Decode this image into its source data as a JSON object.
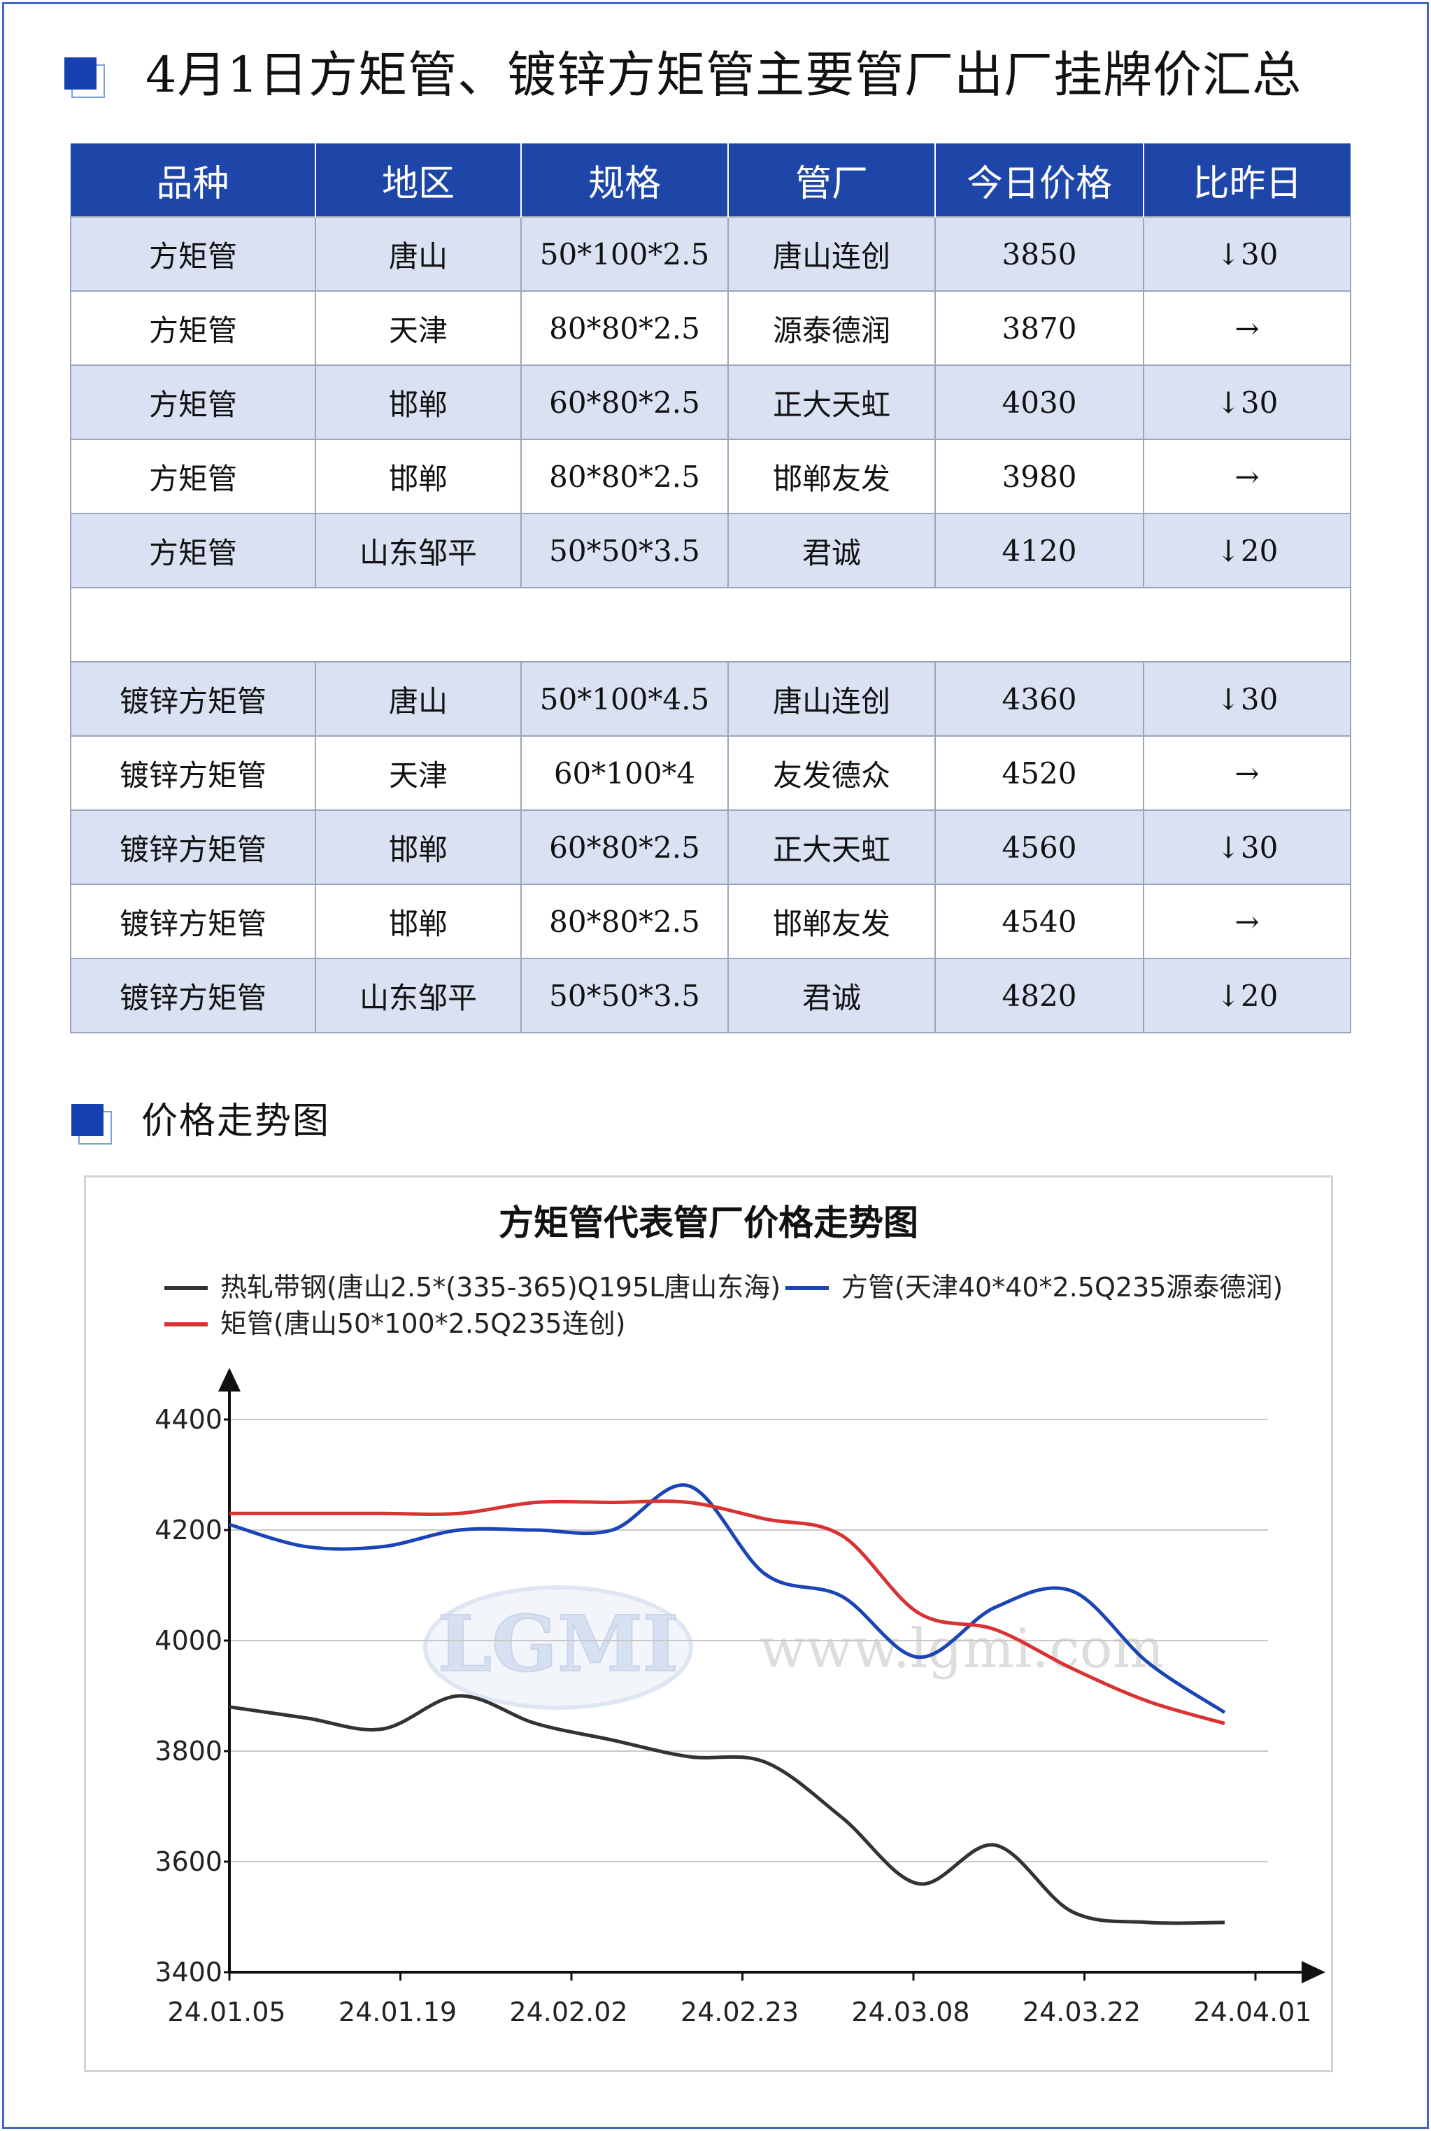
{
  "header": {
    "title": "4月1日方矩管、镀锌方矩管主要管厂出厂挂牌价汇总"
  },
  "table": {
    "columns": [
      "品种",
      "地区",
      "规格",
      "管厂",
      "今日价格",
      "比昨日"
    ],
    "rows_square": [
      {
        "product": "方矩管",
        "region": "唐山",
        "spec": "50*100*2.5",
        "mill": "唐山连创",
        "price": "3850",
        "change": "↓30",
        "trend": "down"
      },
      {
        "product": "方矩管",
        "region": "天津",
        "spec": "80*80*2.5",
        "mill": "源泰德润",
        "price": "3870",
        "change": "→",
        "trend": "flat"
      },
      {
        "product": "方矩管",
        "region": "邯郸",
        "spec": "60*80*2.5",
        "mill": "正大天虹",
        "price": "4030",
        "change": "↓30",
        "trend": "down"
      },
      {
        "product": "方矩管",
        "region": "邯郸",
        "spec": "80*80*2.5",
        "mill": "邯郸友发",
        "price": "3980",
        "change": "→",
        "trend": "flat"
      },
      {
        "product": "方矩管",
        "region": "山东邹平",
        "spec": "50*50*3.5",
        "mill": "君诚",
        "price": "4120",
        "change": "↓20",
        "trend": "down"
      }
    ],
    "rows_galv": [
      {
        "product": "镀锌方矩管",
        "region": "唐山",
        "spec": "50*100*4.5",
        "mill": "唐山连创",
        "price": "4360",
        "change": "↓30",
        "trend": "down"
      },
      {
        "product": "镀锌方矩管",
        "region": "天津",
        "spec": "60*100*4",
        "mill": "友发德众",
        "price": "4520",
        "change": "→",
        "trend": "flat"
      },
      {
        "product": "镀锌方矩管",
        "region": "邯郸",
        "spec": "60*80*2.5",
        "mill": "正大天虹",
        "price": "4560",
        "change": "↓30",
        "trend": "down"
      },
      {
        "product": "镀锌方矩管",
        "region": "邯郸",
        "spec": "80*80*2.5",
        "mill": "邯郸友发",
        "price": "4540",
        "change": "→",
        "trend": "flat"
      },
      {
        "product": "镀锌方矩管",
        "region": "山东邹平",
        "spec": "50*50*3.5",
        "mill": "君诚",
        "price": "4820",
        "change": "↓20",
        "trend": "down"
      }
    ]
  },
  "trend_section": {
    "title": "价格走势图"
  },
  "colors": {
    "header_blue": "#1d46a8",
    "row_alt": "#d9e1f2",
    "down_green": "#00a03c",
    "series_black": "#333333",
    "series_blue": "#1b45b5",
    "series_red": "#d93232"
  },
  "watermark": {
    "logo": "LGMI",
    "url": "www.lgmi.com"
  },
  "chart_data": {
    "type": "line",
    "title": "方矩管代表管厂价格走势图",
    "xlabel": "",
    "ylabel": "",
    "x_ticks": [
      "24.01.05",
      "24.01.19",
      "24.02.02",
      "24.02.23",
      "24.03.08",
      "24.03.22",
      "24.04.01"
    ],
    "ylim": [
      3400,
      4400
    ],
    "y_ticks": [
      3400,
      3600,
      3800,
      4000,
      4200,
      4400
    ],
    "grid": "horizontal",
    "legend": "top",
    "x": [
      "24.01.05",
      "24.01.12",
      "24.01.19",
      "24.01.26",
      "24.02.02",
      "24.02.09",
      "24.02.18",
      "24.02.23",
      "24.03.01",
      "24.03.08",
      "24.03.15",
      "24.03.22",
      "24.03.29",
      "24.04.01"
    ],
    "series": [
      {
        "name": "热轧带钢(唐山2.5*(335-365)Q195L唐山东海)",
        "color": "#333333",
        "values": [
          3880,
          3860,
          3840,
          3900,
          3850,
          3820,
          3790,
          3780,
          3680,
          3560,
          3630,
          3510,
          3490,
          3490
        ]
      },
      {
        "name": "方管(天津40*40*2.5Q235源泰德润)",
        "color": "#1b45b5",
        "values": [
          4210,
          4170,
          4170,
          4200,
          4200,
          4200,
          4280,
          4120,
          4080,
          3970,
          4060,
          4090,
          3960,
          3870
        ]
      },
      {
        "name": "矩管(唐山50*100*2.5Q235连创)",
        "color": "#d93232",
        "values": [
          4230,
          4230,
          4230,
          4230,
          4250,
          4250,
          4250,
          4220,
          4190,
          4050,
          4020,
          3950,
          3890,
          3850
        ]
      }
    ]
  }
}
